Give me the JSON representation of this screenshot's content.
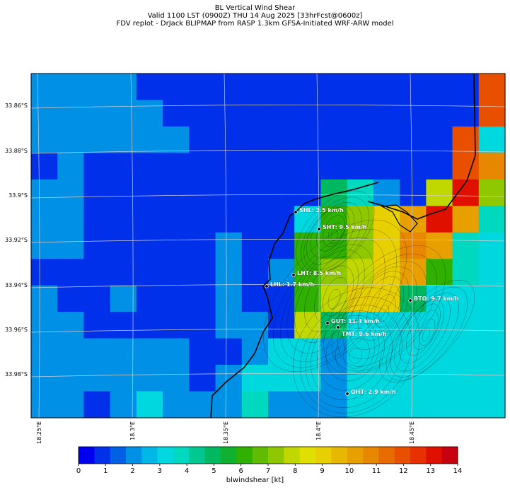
{
  "header": {
    "line1": "BL Vertical Wind Shear",
    "line2": "Valid 1100 LST (0900Z) THU 14 Aug 2025 [33hrFcst@0600z]",
    "line3": "FDV replot - DrJack BLIPMAP from RASP 1.3km GFSA-Initiated WRF-ARW model"
  },
  "axes": {
    "lat_ticks": [
      "33.86°S",
      "33.88°S",
      "33.9°S",
      "33.92°S",
      "33.94°S",
      "33.96°S",
      "33.98°S"
    ],
    "lon_ticks": [
      "18.25°E",
      "18.3°E",
      "18.35°E",
      "18.4°E",
      "18.45°E"
    ]
  },
  "stations": [
    {
      "code": "SHL",
      "label": "SHL: 2.5 km/h"
    },
    {
      "code": "SHT",
      "label": "SHT: 9.5 km/h"
    },
    {
      "code": "LHT",
      "label": "LHT: 8.5 km/h"
    },
    {
      "code": "LHL",
      "label": "LHL: 1.7 km/h"
    },
    {
      "code": "BTO",
      "label": "BTO: 9.7 km/h"
    },
    {
      "code": "GUT",
      "label": "GUT: 11.4 km/h"
    },
    {
      "code": "TMT",
      "label": "TMT: 9.6 km/h"
    },
    {
      "code": "OHT",
      "label": "OHT: 2.9 km/h"
    }
  ],
  "colorbar": {
    "ticks": [
      "0",
      "1",
      "2",
      "3",
      "4",
      "5",
      "6",
      "7",
      "8",
      "9",
      "10",
      "11",
      "12",
      "13",
      "14"
    ],
    "label": "blwindshear [kt]",
    "colors": [
      "#0000ee",
      "#0030ea",
      "#0060e6",
      "#0090e6",
      "#00b8e8",
      "#00d8e0",
      "#00d8c0",
      "#00c890",
      "#00b860",
      "#10b030",
      "#30b000",
      "#60bc00",
      "#90c800",
      "#c0d800",
      "#e0e000",
      "#e8d000",
      "#e8b800",
      "#e8a000",
      "#e88800",
      "#e86c00",
      "#e85000",
      "#e83000",
      "#e01000",
      "#c80010"
    ]
  },
  "colorscale": {
    "min": 0,
    "max": 14,
    "bands": 24,
    "unit": "kt"
  },
  "grid_values": {
    "rows": 13,
    "cols": 18,
    "values": [
      [
        2,
        2,
        2,
        2,
        1,
        1,
        1,
        1,
        1,
        1,
        1,
        1,
        1,
        1,
        1,
        1,
        1,
        12
      ],
      [
        2,
        2,
        2,
        2,
        2,
        1,
        1,
        1,
        1,
        1,
        1,
        1,
        1,
        1,
        1,
        1,
        1,
        12
      ],
      [
        2,
        2,
        2,
        2,
        2,
        2,
        1,
        1,
        1,
        1,
        1,
        1,
        1,
        1,
        1,
        1,
        12,
        3
      ],
      [
        1,
        2,
        1,
        1,
        1,
        1,
        1,
        1,
        1,
        1,
        1,
        1,
        1,
        1,
        1,
        1,
        12,
        11
      ],
      [
        2,
        2,
        1,
        1,
        1,
        1,
        1,
        1,
        1,
        1,
        1,
        5,
        4,
        2,
        1,
        8,
        13,
        7
      ],
      [
        2,
        2,
        1,
        1,
        1,
        1,
        1,
        1,
        1,
        1,
        3,
        6,
        7,
        9,
        10,
        13,
        10,
        4
      ],
      [
        2,
        2,
        1,
        1,
        1,
        1,
        1,
        2,
        1,
        1,
        6,
        6,
        7,
        9,
        11,
        10,
        4,
        3
      ],
      [
        1,
        1,
        1,
        1,
        1,
        1,
        1,
        2,
        1,
        2,
        6,
        7,
        8,
        9,
        10,
        6,
        4,
        3
      ],
      [
        2,
        1,
        1,
        2,
        1,
        1,
        1,
        2,
        1,
        1,
        6,
        8,
        9,
        9,
        5,
        3,
        3,
        3
      ],
      [
        2,
        2,
        1,
        1,
        1,
        1,
        1,
        2,
        2,
        1,
        8,
        5,
        3,
        3,
        3,
        3,
        3,
        3
      ],
      [
        2,
        2,
        2,
        2,
        2,
        2,
        1,
        1,
        2,
        3,
        3,
        2,
        3,
        3,
        3,
        3,
        3,
        3
      ],
      [
        2,
        2,
        2,
        2,
        2,
        2,
        1,
        2,
        3,
        3,
        3,
        2,
        3,
        3,
        3,
        3,
        3,
        3
      ],
      [
        2,
        2,
        1,
        2,
        3,
        2,
        2,
        2,
        4,
        2,
        2,
        2,
        3,
        3,
        3,
        3,
        3,
        3
      ]
    ]
  }
}
